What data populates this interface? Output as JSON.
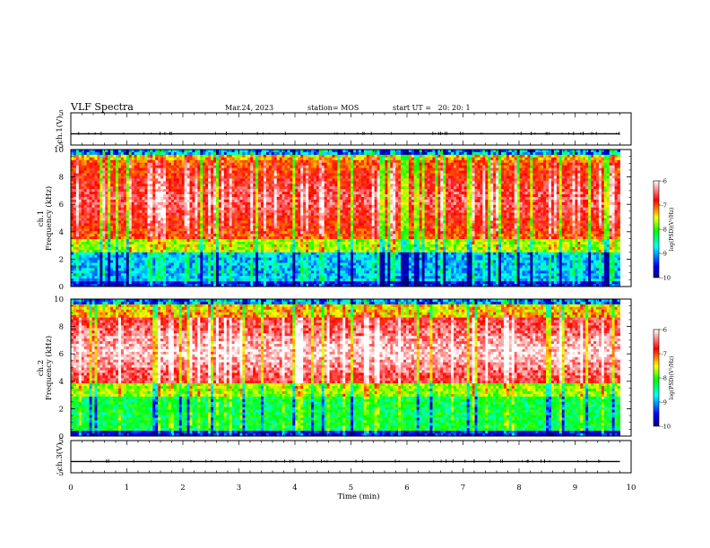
{
  "header": {
    "title": "VLF Spectra",
    "date": "Mar.24, 2023",
    "station": "station= MOS",
    "start_ut": "start UT =   20: 20: 1"
  },
  "chart_data": {
    "type": "heatmap",
    "x_axis": {
      "label": "Time (min)",
      "range": [
        0,
        10
      ],
      "ticks": [
        "0",
        "1",
        "2",
        "3",
        "4",
        "5",
        "6",
        "7",
        "8",
        "9",
        "10"
      ],
      "minor_ticks_per_major": 5
    },
    "record_end_min": 9.8,
    "panels": [
      {
        "id": "ch1-waveform",
        "type": "line",
        "ylabel": "ch.1(V)",
        "yrange": [
          -5,
          5
        ],
        "ytick_labels": [
          "5",
          "-5"
        ],
        "trace_level_v": -1.5
      },
      {
        "id": "ch1-spectrogram",
        "type": "heatmap",
        "ylabel_channel": "ch.1",
        "ylabel": "Frequency (kHz)",
        "yrange": [
          0,
          10
        ],
        "ytick_labels": [
          "0",
          "2",
          "4",
          "6",
          "8",
          "10"
        ],
        "noise_band_khz": [
          3.5,
          9.2
        ],
        "colorbar": {
          "label": "log(PSD)(V²/Hz)",
          "range": [
            -10,
            -6
          ],
          "tick_labels": [
            "-6",
            "-7",
            "-8",
            "-9",
            "-10"
          ]
        }
      },
      {
        "id": "ch2-spectrogram",
        "type": "heatmap",
        "ylabel_channel": "ch.2",
        "ylabel": "Frequency (kHz)",
        "yrange": [
          0,
          10
        ],
        "ytick_labels": [
          "0",
          "2",
          "4",
          "6",
          "8",
          "10"
        ],
        "noise_band_khz": [
          3.8,
          8.6
        ],
        "colorbar": {
          "label": "log(PSD)(V²/Hz)",
          "range": [
            -10,
            -6
          ],
          "tick_labels": [
            "-6",
            "-7",
            "-8",
            "-9",
            "-10"
          ]
        }
      },
      {
        "id": "ch3-waveform",
        "type": "line",
        "ylabel": "ch.3(V)",
        "yrange": [
          -5,
          5
        ],
        "ytick_labels": [
          "5",
          "-5"
        ],
        "trace_level_v": -1.5
      }
    ],
    "colormap": [
      "#000080",
      "#0000ff",
      "#00ffff",
      "#00ff00",
      "#ffff00",
      "#ff0000",
      "#ffffff"
    ]
  }
}
